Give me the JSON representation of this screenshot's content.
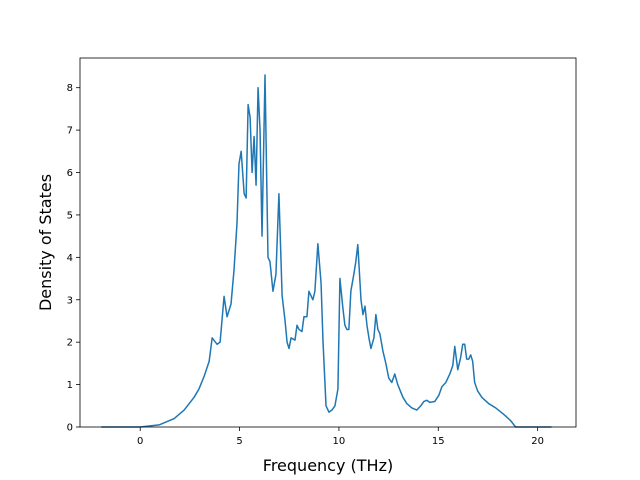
{
  "chart_data": {
    "type": "line",
    "xlabel": "Frequency (THz)",
    "ylabel": "Density of States",
    "xlim": [
      -3.03,
      21.93
    ],
    "ylim": [
      0,
      8.7
    ],
    "xticks": [
      0,
      5,
      10,
      15,
      20
    ],
    "yticks": [
      0,
      1,
      2,
      3,
      4,
      5,
      6,
      7,
      8
    ],
    "series": [
      {
        "color": "#1f77b4",
        "x": [
          -1.96,
          0,
          0.95,
          1.71,
          2.21,
          2.71,
          2.96,
          3.22,
          3.47,
          3.62,
          3.87,
          4.02,
          4.22,
          4.37,
          4.57,
          4.72,
          4.87,
          4.97,
          5.08,
          5.23,
          5.33,
          5.43,
          5.53,
          5.63,
          5.73,
          5.83,
          5.93,
          6.03,
          6.13,
          6.28,
          6.43,
          6.53,
          6.68,
          6.83,
          6.98,
          7.14,
          7.29,
          7.39,
          7.49,
          7.59,
          7.79,
          7.89,
          7.99,
          8.14,
          8.24,
          8.39,
          8.49,
          8.69,
          8.79,
          8.94,
          9.1,
          9.2,
          9.35,
          9.5,
          9.65,
          9.8,
          9.95,
          10.05,
          10.2,
          10.3,
          10.4,
          10.5,
          10.6,
          10.75,
          10.85,
          10.95,
          11.11,
          11.21,
          11.31,
          11.41,
          11.51,
          11.61,
          11.76,
          11.86,
          11.96,
          12.06,
          12.21,
          12.36,
          12.51,
          12.66,
          12.81,
          12.96,
          13.22,
          13.42,
          13.67,
          13.92,
          14.12,
          14.27,
          14.42,
          14.57,
          14.82,
          15.03,
          15.18,
          15.38,
          15.58,
          15.73,
          15.83,
          15.98,
          16.13,
          16.23,
          16.33,
          16.43,
          16.53,
          16.63,
          16.73,
          16.83,
          16.98,
          17.19,
          17.54,
          17.89,
          18.29,
          18.64,
          18.89,
          20.7
        ],
        "values": [
          0,
          0,
          0.05,
          0.2,
          0.4,
          0.7,
          0.9,
          1.2,
          1.55,
          2.1,
          1.95,
          2.0,
          3.08,
          2.6,
          2.9,
          3.7,
          4.8,
          6.2,
          6.5,
          5.5,
          5.4,
          7.6,
          7.3,
          6.0,
          6.85,
          5.7,
          8.0,
          7.0,
          4.5,
          8.3,
          4.0,
          3.9,
          3.2,
          3.6,
          5.5,
          3.1,
          2.5,
          2.0,
          1.85,
          2.1,
          2.05,
          2.4,
          2.3,
          2.25,
          2.6,
          2.6,
          3.2,
          3.0,
          3.2,
          4.32,
          3.4,
          2.0,
          0.5,
          0.35,
          0.4,
          0.5,
          0.9,
          3.5,
          2.8,
          2.4,
          2.3,
          2.3,
          3.2,
          3.6,
          3.9,
          4.3,
          3.0,
          2.65,
          2.85,
          2.4,
          2.1,
          1.85,
          2.1,
          2.65,
          2.3,
          2.2,
          1.8,
          1.5,
          1.15,
          1.05,
          1.25,
          1.0,
          0.7,
          0.55,
          0.45,
          0.4,
          0.5,
          0.6,
          0.63,
          0.58,
          0.6,
          0.75,
          0.95,
          1.05,
          1.25,
          1.45,
          1.9,
          1.35,
          1.65,
          1.95,
          1.95,
          1.6,
          1.6,
          1.7,
          1.55,
          1.05,
          0.85,
          0.7,
          0.55,
          0.45,
          0.3,
          0.15,
          0,
          0
        ]
      }
    ]
  }
}
